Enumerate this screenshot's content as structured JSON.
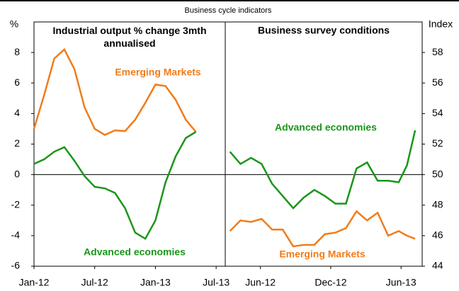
{
  "chart_data": {
    "type": "line",
    "title": "Business cycle indicators",
    "y_label": "%",
    "y2_label": "Index",
    "ylim": [
      -6,
      10
    ],
    "yticks": [
      -6,
      -4,
      -2,
      0,
      2,
      4,
      6,
      8
    ],
    "y2lim": [
      44,
      60
    ],
    "y2ticks": [
      44,
      46,
      48,
      50,
      52,
      54,
      56,
      58
    ],
    "panels": [
      {
        "title": "Industrial output % change 3mth annualised",
        "xlim": [
          0,
          18.9
        ],
        "xticks": [
          {
            "value": 0,
            "label": "Jan-12"
          },
          {
            "value": 6,
            "label": "Jul-12"
          },
          {
            "value": 12,
            "label": "Jan-13"
          },
          {
            "value": 18,
            "label": "Jul-13"
          }
        ],
        "x": [
          0,
          1,
          2,
          3,
          4,
          5,
          6,
          7,
          8,
          9,
          10,
          11,
          12,
          13,
          14,
          15,
          16
        ],
        "series": [
          {
            "name": "Emerging Markets",
            "color": "#f07c1a",
            "values": [
              3.0,
              5.2,
              7.6,
              8.2,
              6.9,
              4.4,
              3.0,
              2.6,
              2.9,
              2.85,
              3.6,
              4.7,
              5.9,
              5.8,
              4.9,
              3.6,
              2.8
            ]
          },
          {
            "name": "Advanced economies",
            "color": "#1a961a",
            "values": [
              0.7,
              1.0,
              1.5,
              1.8,
              0.9,
              -0.1,
              -0.8,
              -0.9,
              -1.2,
              -2.2,
              -3.8,
              -4.2,
              -3.0,
              -0.5,
              1.2,
              2.4,
              2.8
            ]
          }
        ]
      },
      {
        "title": "Business survey conditions",
        "xlim": [
          2,
          18.8
        ],
        "xticks": [
          {
            "value": 5,
            "label": "Jun-12"
          },
          {
            "value": 11,
            "label": "Dec-12"
          },
          {
            "value": 17,
            "label": "Jun-13"
          }
        ],
        "x": [
          2.4,
          3.3,
          4.2,
          5.1,
          6,
          6.9,
          7.8,
          8.7,
          9.6,
          10.5,
          11.4,
          12.3,
          13.2,
          14.1,
          15,
          15.9,
          16.8,
          17.5,
          18.2
        ],
        "series": [
          {
            "name": "Advanced economies",
            "color": "#1a961a",
            "axis": "y2",
            "values": [
              51.5,
              50.7,
              51.1,
              50.7,
              49.4,
              48.6,
              47.8,
              48.5,
              49.0,
              48.6,
              48.1,
              48.1,
              50.4,
              50.8,
              49.6,
              49.6,
              49.5,
              50.6,
              52.9
            ]
          },
          {
            "name": "Emerging Markets",
            "color": "#f07c1a",
            "axis": "y2",
            "values": [
              46.3,
              47.0,
              46.9,
              47.1,
              46.4,
              46.4,
              45.3,
              45.4,
              45.4,
              46.1,
              46.2,
              46.5,
              47.6,
              47.0,
              47.5,
              46.0,
              46.3,
              46.0,
              45.8
            ]
          }
        ]
      }
    ]
  }
}
